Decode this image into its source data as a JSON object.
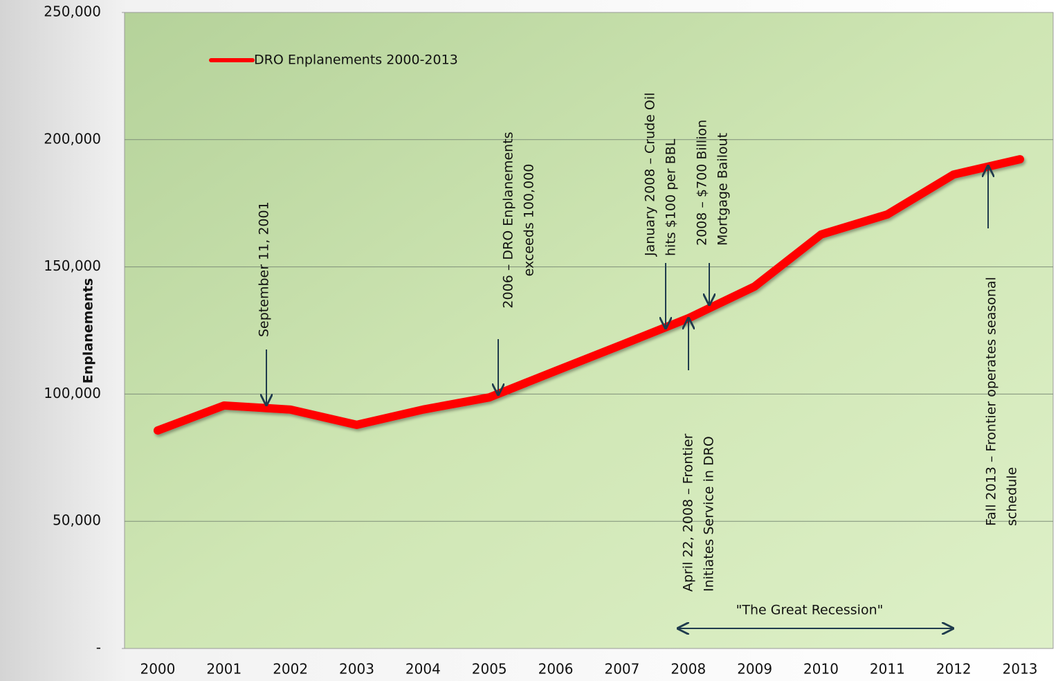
{
  "chart_data": {
    "type": "line",
    "y_label": "Enplanements",
    "categories": [
      "2000",
      "2001",
      "2002",
      "2003",
      "2004",
      "2005",
      "2006",
      "2007",
      "2008",
      "2009",
      "2010",
      "2011",
      "2012",
      "2013"
    ],
    "series": [
      {
        "name": "DRO Enplanements 2000-2013",
        "color": "#ff0000",
        "values": [
          85700,
          95500,
          93900,
          87900,
          93900,
          98700,
          109100,
          119400,
          129800,
          142300,
          162700,
          170600,
          186300,
          192300
        ]
      }
    ],
    "ylim": [
      0,
      250000
    ],
    "yticks": [
      {
        "value": 0,
        "label": "-"
      },
      {
        "value": 50000,
        "label": "50,000"
      },
      {
        "value": 100000,
        "label": "100,000"
      },
      {
        "value": 150000,
        "label": "150,000"
      },
      {
        "value": 200000,
        "label": "200,000"
      },
      {
        "value": 250000,
        "label": "250,000"
      }
    ],
    "grid": true,
    "legend": "upper left",
    "annotations": [
      {
        "lines": [
          "September 11, 2001"
        ]
      },
      {
        "lines": [
          "2006 – DRO Enplanements",
          "exceeds 100,000"
        ]
      },
      {
        "lines": [
          "January 2008 – Crude Oil",
          "hits $100 per BBL"
        ]
      },
      {
        "lines": [
          "2008 – $700 Billion",
          "Mortgage Bailout"
        ]
      },
      {
        "lines": [
          "April 22, 2008 – Frontier",
          "Initiates Service in DRO"
        ]
      },
      {
        "lines": [
          "Fall 2013 – Frontier operates seasonal",
          "schedule"
        ]
      },
      {
        "lines": [
          "\"The Great Recession\""
        ]
      }
    ]
  }
}
